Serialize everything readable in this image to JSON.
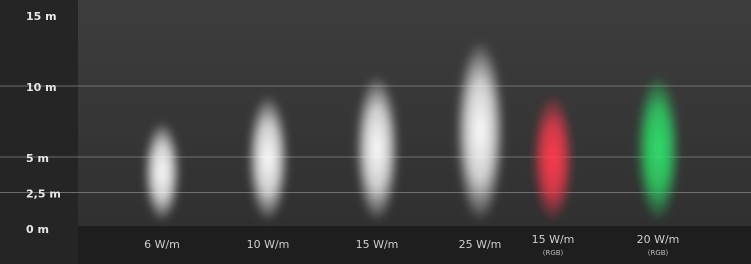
{
  "chart_data": {
    "type": "beam",
    "categories": [
      "6 W/m",
      "10 W/m",
      "15 W/m",
      "25 W/m",
      "15 W/m",
      "20 W/m"
    ],
    "sublabels": [
      null,
      null,
      null,
      null,
      "(RGB)",
      "(RGB)"
    ],
    "values": [
      7.5,
      9.4,
      10.8,
      13.2,
      9.4,
      10.8
    ],
    "colors": [
      "#ffffff",
      "#ffffff",
      "#ffffff",
      "#ffffff",
      "#ff3b4e",
      "#2fe06a"
    ],
    "ylim": [
      0,
      15
    ],
    "yticks": [
      {
        "value": 0,
        "label": "0 m"
      },
      {
        "value": 2.5,
        "label": "2,5 m"
      },
      {
        "value": 5,
        "label": "5 m"
      },
      {
        "value": 10,
        "label": "10 m"
      },
      {
        "value": 15,
        "label": "15 m"
      }
    ],
    "grid": true
  }
}
